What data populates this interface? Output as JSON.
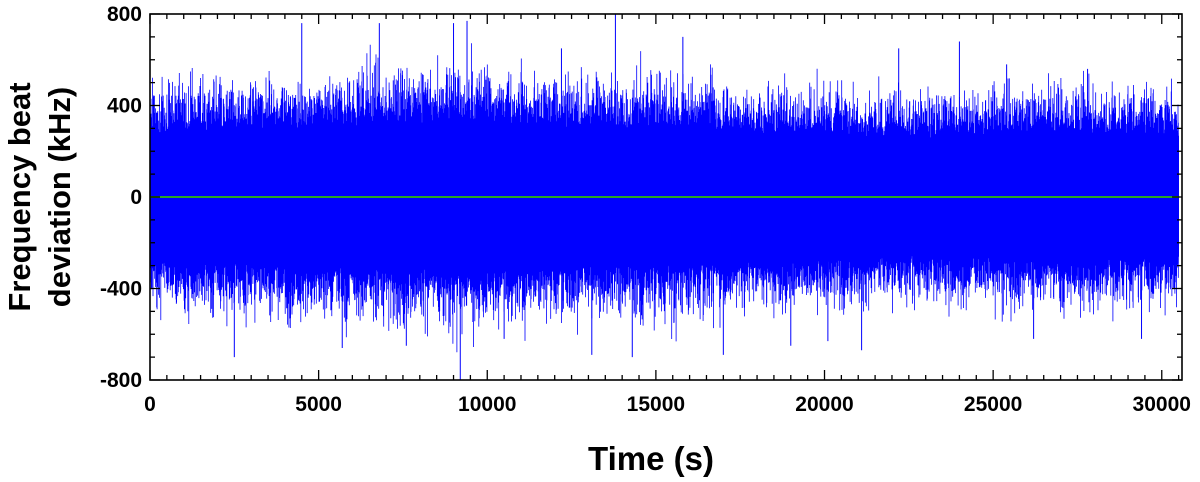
{
  "chart_data": {
    "type": "line",
    "title": "",
    "xlabel": "Time (s)",
    "ylabel_lines": [
      "Frequency beat",
      "deviation (kHz)"
    ],
    "xlim": [
      0,
      30600
    ],
    "ylim": [
      -800,
      800
    ],
    "x_ticks": [
      0,
      5000,
      10000,
      15000,
      20000,
      25000,
      30000
    ],
    "y_ticks": [
      -800,
      -400,
      0,
      400,
      800
    ],
    "grid": false,
    "legend": "none",
    "series": [
      {
        "color": "#0000ff",
        "x_range": [
          0,
          30500
        ],
        "n_points": 3050,
        "typical_band_khz": [
          -300,
          300
        ],
        "envelope_khz": [
          [
            0,
            290
          ],
          [
            1000,
            310
          ],
          [
            2000,
            320
          ],
          [
            3000,
            320
          ],
          [
            4000,
            320
          ],
          [
            5000,
            330
          ],
          [
            6000,
            340
          ],
          [
            7000,
            350
          ],
          [
            8000,
            340
          ],
          [
            9000,
            360
          ],
          [
            10000,
            350
          ],
          [
            11000,
            340
          ],
          [
            12000,
            330
          ],
          [
            13000,
            330
          ],
          [
            14000,
            320
          ],
          [
            15000,
            330
          ],
          [
            16000,
            320
          ],
          [
            17000,
            310
          ],
          [
            18000,
            300
          ],
          [
            19000,
            300
          ],
          [
            20000,
            300
          ],
          [
            21000,
            290
          ],
          [
            22000,
            280
          ],
          [
            23000,
            280
          ],
          [
            24000,
            290
          ],
          [
            25000,
            290
          ],
          [
            26000,
            300
          ],
          [
            27000,
            310
          ],
          [
            28000,
            300
          ],
          [
            29000,
            290
          ],
          [
            30000,
            290
          ],
          [
            30500,
            290
          ]
        ],
        "peak_excursions": [
          [
            2500,
            -700
          ],
          [
            4500,
            760
          ],
          [
            5700,
            -660
          ],
          [
            6800,
            760
          ],
          [
            7600,
            -650
          ],
          [
            9000,
            760
          ],
          [
            9200,
            -800
          ],
          [
            9400,
            770
          ],
          [
            10500,
            -620
          ],
          [
            12200,
            650
          ],
          [
            13100,
            -690
          ],
          [
            13800,
            800
          ],
          [
            14300,
            -700
          ],
          [
            15800,
            700
          ],
          [
            17000,
            -690
          ],
          [
            19000,
            -650
          ],
          [
            20100,
            -630
          ],
          [
            21100,
            -670
          ],
          [
            22200,
            650
          ],
          [
            24000,
            680
          ],
          [
            25400,
            580
          ],
          [
            26200,
            -620
          ],
          [
            27800,
            560
          ],
          [
            29400,
            -620
          ]
        ]
      },
      {
        "color": "#2aa52a",
        "x": [
          0,
          30500
        ],
        "y": [
          0,
          0
        ]
      }
    ]
  }
}
